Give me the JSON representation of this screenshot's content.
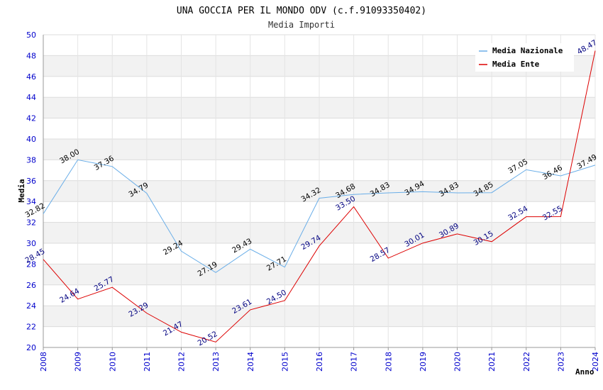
{
  "chart_data": {
    "type": "line",
    "title": "UNA GOCCIA PER IL MONDO ODV (c.f.91093350402)",
    "subtitle": "Media Importi",
    "xlabel": "Anno",
    "ylabel": "Media",
    "ylim": [
      20,
      50
    ],
    "yticks": [
      "20",
      "22",
      "24",
      "26",
      "28",
      "30",
      "32",
      "34",
      "36",
      "38",
      "40",
      "42",
      "44",
      "46",
      "48",
      "50"
    ],
    "categories": [
      "2008",
      "2009",
      "2010",
      "2011",
      "2012",
      "2013",
      "2014",
      "2015",
      "2016",
      "2017",
      "2018",
      "2019",
      "2020",
      "2021",
      "2022",
      "2023",
      "2024"
    ],
    "grid": true,
    "legend_position": "top-right",
    "series": [
      {
        "name": "Media Nazionale",
        "color": "#6aaee8",
        "values": [
          32.82,
          38.0,
          37.36,
          34.79,
          29.24,
          27.19,
          29.43,
          27.71,
          34.32,
          34.68,
          34.83,
          34.94,
          34.83,
          34.85,
          37.05,
          36.46,
          37.49
        ],
        "labels": [
          "32.82",
          "38.00",
          "37.36",
          "34.79",
          "29.24",
          "27.19",
          "29.43",
          "27.71",
          "34.32",
          "34.68",
          "34.83",
          "34.94",
          "34.83",
          "34.85",
          "37.05",
          "36.46",
          "37.49"
        ]
      },
      {
        "name": "Media Ente",
        "color": "#dd0000",
        "values": [
          28.45,
          24.64,
          25.77,
          23.29,
          21.47,
          20.52,
          23.61,
          24.5,
          29.74,
          33.5,
          28.57,
          30.01,
          30.89,
          30.15,
          32.54,
          32.55,
          48.47
        ],
        "labels": [
          "28.45",
          "24.64",
          "25.77",
          "23.29",
          "21.47",
          "20.52",
          "23.61",
          "24.50",
          "29.74",
          "33.50",
          "28.57",
          "30.01",
          "30.89",
          "30.15",
          "32.54",
          "32.55",
          "48.47"
        ]
      }
    ]
  }
}
